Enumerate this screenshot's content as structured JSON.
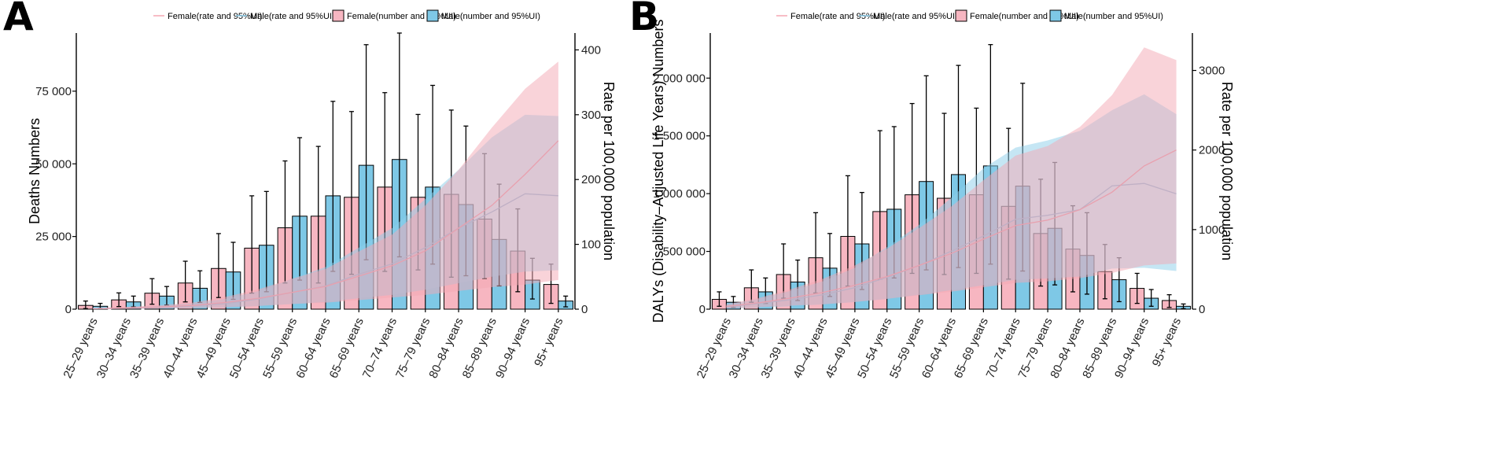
{
  "chart_data": [
    {
      "type": "bar",
      "panel_label": "A",
      "categories": [
        "25–29 years",
        "30–34 years",
        "35–39 years",
        "40–44 years",
        "45–49 years",
        "50–54 years",
        "55–59 years",
        "60–64 years",
        "65–69 years",
        "70–74 years",
        "75–79 years",
        "80–84 years",
        "85–89 years",
        "90–94 years",
        "95+ years"
      ],
      "ylabel": "Deaths Numbers",
      "ylabel_right": "Rate per 100,000 population",
      "ylim": [
        0,
        95000
      ],
      "ylim_right": [
        0,
        426
      ],
      "yticks": [
        0,
        25000,
        50000,
        75000
      ],
      "ytick_labels": [
        "0",
        "25 000",
        "50 000",
        "75 000"
      ],
      "yticks_right": [
        0,
        100,
        200,
        300,
        400
      ],
      "ytick_labels_right": [
        "0",
        "100",
        "200",
        "300",
        "400"
      ],
      "legend": [
        "Female(rate and 95%UI)",
        "Male(rate and 95%UI)",
        "Female(number and 95%UI)",
        "Male(number and 95%UI)"
      ],
      "series": [
        {
          "name": "Female(number and 95%UI)",
          "color": "#F7B6C1",
          "values": [
            1300,
            3200,
            5500,
            9000,
            14000,
            21000,
            28000,
            32000,
            38500,
            42000,
            38500,
            39500,
            31000,
            20000,
            8500
          ],
          "lower": [
            200,
            900,
            1700,
            2500,
            4000,
            5500,
            9000,
            9000,
            12000,
            13000,
            13500,
            11000,
            10500,
            6000,
            2000
          ],
          "upper": [
            2800,
            5600,
            10500,
            16500,
            26000,
            39000,
            51000,
            56000,
            68000,
            74500,
            67000,
            68500,
            53500,
            34500,
            15500
          ]
        },
        {
          "name": "Male(number and 95%UI)",
          "color": "#7EC8E6",
          "values": [
            1000,
            2500,
            4500,
            7200,
            12800,
            22000,
            32000,
            39000,
            49500,
            51500,
            42000,
            36000,
            24000,
            10000,
            2800
          ],
          "lower": [
            300,
            800,
            1400,
            2300,
            3400,
            6000,
            10000,
            13000,
            17000,
            18000,
            15500,
            11500,
            8000,
            3500,
            800
          ],
          "upper": [
            2000,
            4500,
            7800,
            13200,
            23000,
            40500,
            59000,
            71500,
            91000,
            95000,
            77000,
            63000,
            43000,
            17500,
            4500
          ]
        },
        {
          "name": "Female(rate and 95%UI)",
          "color": "#F4A7B3",
          "rate": [
            0.8,
            1.8,
            3.5,
            5.8,
            10.5,
            17,
            26,
            35,
            51,
            67,
            90,
            125,
            160,
            208,
            260
          ],
          "lower": [
            0.2,
            0.5,
            1,
            1.8,
            3,
            5,
            8,
            10,
            14,
            18,
            22,
            28,
            34,
            38,
            45
          ],
          "upper": [
            1.5,
            3.5,
            6,
            10,
            19,
            31,
            47,
            62,
            89,
            115,
            160,
            215,
            280,
            340,
            382
          ]
        },
        {
          "name": "Male(rate and 95%UI)",
          "color": "#8CCEEA",
          "rate": [
            0.6,
            1.5,
            2.9,
            4.8,
            8.5,
            16,
            26,
            36,
            54,
            70,
            95,
            125,
            150,
            178,
            175
          ],
          "lower": [
            0.2,
            0.4,
            0.8,
            1.5,
            2.8,
            5,
            8,
            11,
            17,
            22,
            30,
            40,
            50,
            58,
            60
          ],
          "upper": [
            1.2,
            2.8,
            5.3,
            9,
            16,
            28,
            47,
            65,
            95,
            125,
            170,
            215,
            265,
            300,
            298
          ]
        }
      ]
    },
    {
      "type": "bar",
      "panel_label": "B",
      "categories": [
        "25–29 years",
        "30–34 years",
        "35–39 years",
        "40–44 years",
        "45–49 years",
        "50–54 years",
        "55–59 years",
        "60–64 years",
        "65–69 years",
        "70–74 years",
        "75–79 years",
        "80–84 years",
        "85–89 years",
        "90–94 years",
        "95+ years"
      ],
      "ylabel": "DALYs (Disability–Adjusted Life Years) Numbers",
      "ylabel_right": "Rate per 100,000 population",
      "ylim": [
        0,
        2390000
      ],
      "ylim_right": [
        0,
        3470
      ],
      "yticks": [
        0,
        500000,
        1000000,
        1500000,
        2000000
      ],
      "ytick_labels": [
        "0",
        "500 000",
        "1 000 000",
        "1 500 000",
        "2 000 000"
      ],
      "yticks_right": [
        0,
        1000,
        2000,
        3000
      ],
      "ytick_labels_right": [
        "0",
        "1000",
        "2000",
        "3000"
      ],
      "legend": [
        "Female(rate and 95%UI)",
        "Male(rate and 95%UI)",
        "Female(number and 95%UI)",
        "Male(number and 95%UI)"
      ],
      "series": [
        {
          "name": "Female(number and 95%UI)",
          "color": "#F7B6C1",
          "values": [
            85000,
            185000,
            300000,
            445000,
            630000,
            845000,
            990000,
            960000,
            990000,
            890000,
            655000,
            520000,
            325000,
            180000,
            75000
          ],
          "lower": [
            25000,
            60000,
            95000,
            140000,
            200000,
            260000,
            310000,
            300000,
            310000,
            260000,
            200000,
            150000,
            90000,
            50000,
            15000
          ],
          "upper": [
            150000,
            340000,
            565000,
            835000,
            1155000,
            1545000,
            1780000,
            1695000,
            1740000,
            1565000,
            1125000,
            895000,
            560000,
            310000,
            125000
          ]
        },
        {
          "name": "Male(number and 95%UI)",
          "color": "#7EC8E6",
          "values": [
            60000,
            150000,
            235000,
            355000,
            565000,
            865000,
            1105000,
            1165000,
            1240000,
            1065000,
            700000,
            465000,
            255000,
            95000,
            25000
          ],
          "lower": [
            15000,
            50000,
            75000,
            110000,
            170000,
            270000,
            340000,
            360000,
            390000,
            330000,
            210000,
            130000,
            65000,
            25000,
            5000
          ],
          "upper": [
            110000,
            270000,
            425000,
            655000,
            1010000,
            1580000,
            2020000,
            2110000,
            2290000,
            1955000,
            1270000,
            835000,
            445000,
            170000,
            45000
          ]
        },
        {
          "name": "Female(rate and 95%UI)",
          "color": "#F4A7B3",
          "rate": [
            35,
            80,
            140,
            210,
            300,
            410,
            550,
            700,
            880,
            1050,
            1120,
            1250,
            1470,
            1800,
            2000
          ],
          "lower": [
            10,
            25,
            45,
            60,
            90,
            130,
            175,
            220,
            275,
            330,
            350,
            390,
            455,
            550,
            575
          ],
          "upper": [
            60,
            140,
            250,
            380,
            550,
            760,
            1020,
            1290,
            1620,
            1930,
            2050,
            2290,
            2690,
            3290,
            3130
          ]
        },
        {
          "name": "Male(rate and 95%UI)",
          "color": "#8CCEEA",
          "rate": [
            30,
            70,
            120,
            180,
            270,
            400,
            550,
            730,
            920,
            1130,
            1180,
            1250,
            1550,
            1580,
            1450
          ],
          "lower": [
            10,
            20,
            40,
            60,
            90,
            130,
            180,
            240,
            300,
            370,
            385,
            410,
            510,
            520,
            480
          ],
          "upper": [
            55,
            130,
            230,
            350,
            520,
            780,
            1060,
            1400,
            1770,
            2030,
            2120,
            2240,
            2500,
            2700,
            2450
          ]
        }
      ]
    }
  ]
}
